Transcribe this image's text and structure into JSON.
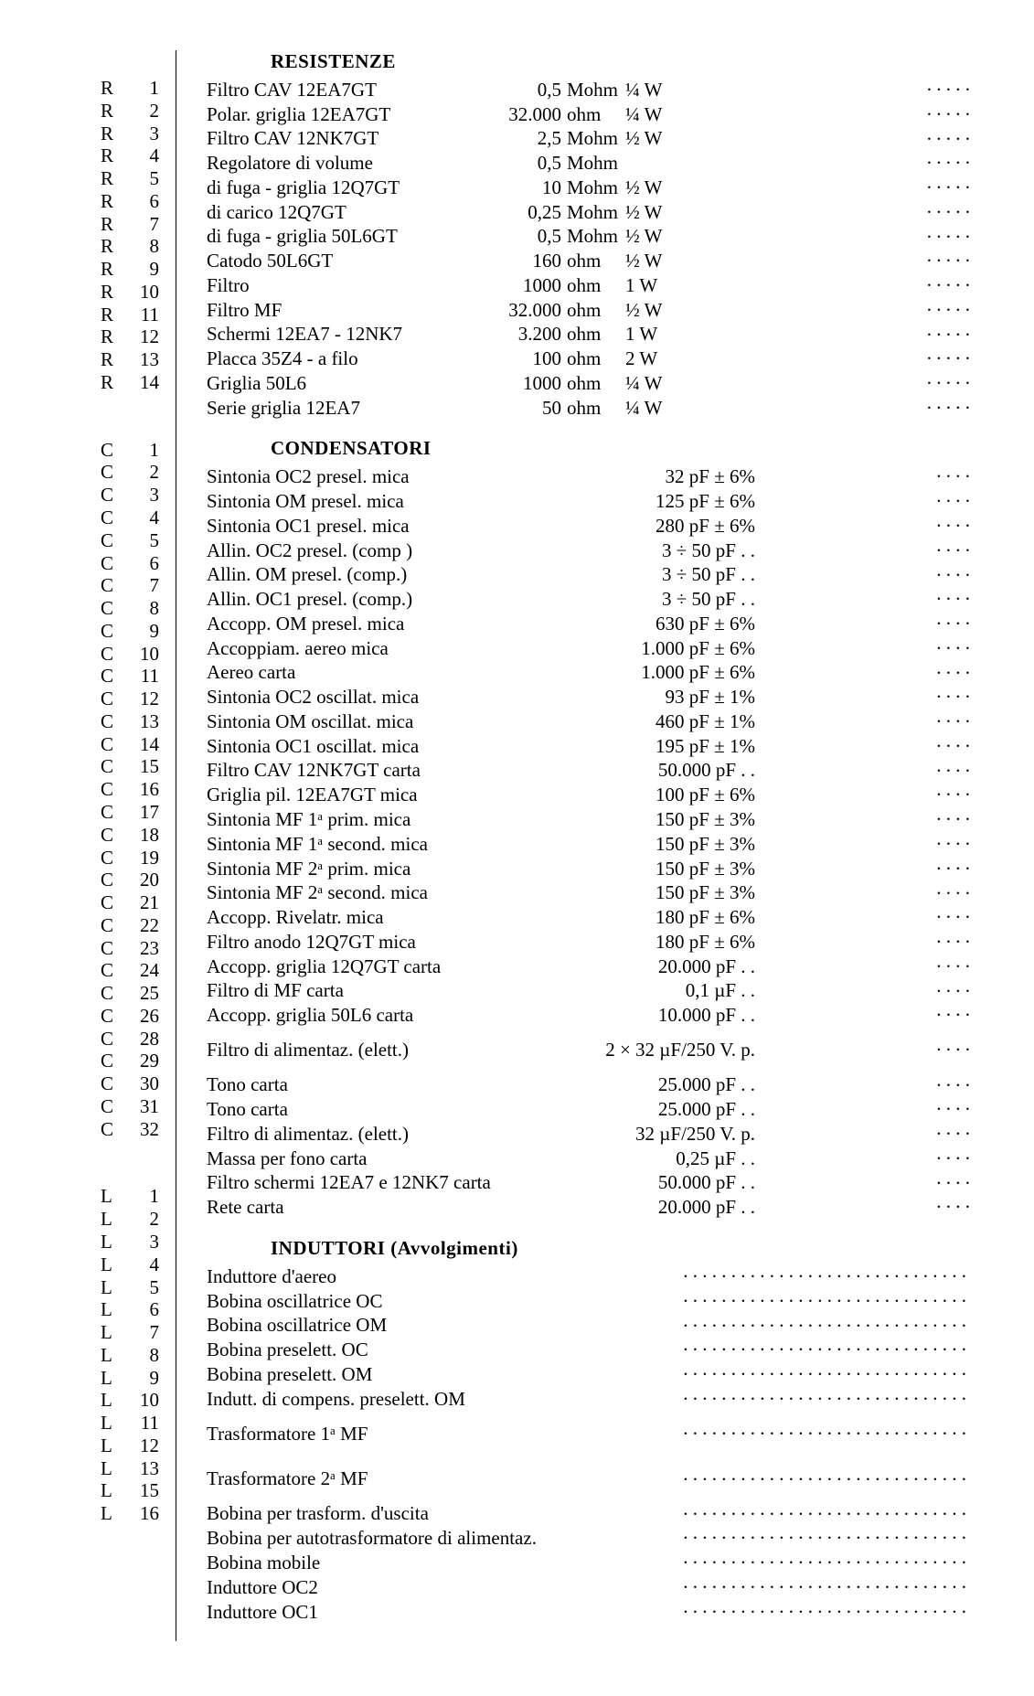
{
  "titles": {
    "resistors": "RESISTENZE",
    "capacitors": "CONDENSATORI",
    "inductors": "INDUTTORI (Avvolgimenti)"
  },
  "resistors": [
    {
      "ref": "R",
      "n": "1",
      "desc": "Filtro CAV 12EA7GT",
      "val": "0,5",
      "unit": "Mohm",
      "w": "¼ W"
    },
    {
      "ref": "R",
      "n": "2",
      "desc": "Polar. griglia 12EA7GT",
      "val": "32.000",
      "unit": "ohm",
      "w": "¼ W"
    },
    {
      "ref": "R",
      "n": "3",
      "desc": "Filtro CAV 12NK7GT",
      "val": "2,5",
      "unit": "Mohm",
      "w": "½ W"
    },
    {
      "ref": "R",
      "n": "4",
      "desc": "Regolatore di volume",
      "val": "0,5",
      "unit": "Mohm",
      "w": ""
    },
    {
      "ref": "R",
      "n": "5",
      "desc": "di fuga - griglia 12Q7GT",
      "val": "10",
      "unit": "Mohm",
      "w": "½ W"
    },
    {
      "ref": "R",
      "n": "6",
      "desc": "di carico 12Q7GT",
      "val": "0,25",
      "unit": "Mohm",
      "w": "½ W"
    },
    {
      "ref": "R",
      "n": "7",
      "desc": "di fuga - griglia 50L6GT",
      "val": "0,5",
      "unit": "Mohm",
      "w": "½ W"
    },
    {
      "ref": "R",
      "n": "8",
      "desc": "Catodo 50L6GT",
      "val": "160",
      "unit": "ohm",
      "w": "½ W"
    },
    {
      "ref": "R",
      "n": "9",
      "desc": "Filtro",
      "val": "1000",
      "unit": "ohm",
      "w": "1  W"
    },
    {
      "ref": "R",
      "n": "10",
      "desc": "Filtro MF",
      "val": "32.000",
      "unit": "ohm",
      "w": "½ W"
    },
    {
      "ref": "R",
      "n": "11",
      "desc": "Schermi 12EA7 - 12NK7",
      "val": "3.200",
      "unit": "ohm",
      "w": "1  W"
    },
    {
      "ref": "R",
      "n": "12",
      "desc": "Placca 35Z4 - a filo",
      "val": "100",
      "unit": "ohm",
      "w": "2  W"
    },
    {
      "ref": "R",
      "n": "13",
      "desc": "Griglia 50L6",
      "val": "1000",
      "unit": "ohm",
      "w": "¼ W"
    },
    {
      "ref": "R",
      "n": "14",
      "desc": "Serie griglia 12EA7",
      "val": "50",
      "unit": "ohm",
      "w": "¼ W"
    }
  ],
  "capacitors": [
    {
      "ref": "C",
      "n": "1",
      "desc": "Sintonia OC2 presel. mica",
      "val": "32 pF ± 6%"
    },
    {
      "ref": "C",
      "n": "2",
      "desc": "Sintonia OM presel. mica",
      "val": "125 pF ± 6%"
    },
    {
      "ref": "C",
      "n": "3",
      "desc": "Sintonia OC1 presel. mica",
      "val": "280 pF ± 6%"
    },
    {
      "ref": "C",
      "n": "4",
      "desc": "Allin. OC2 presel. (comp )",
      "val": "3 ÷ 50 pF   .    ."
    },
    {
      "ref": "C",
      "n": "5",
      "desc": "Allin. OM presel. (comp.)",
      "val": "3 ÷ 50 pF   .    ."
    },
    {
      "ref": "C",
      "n": "6",
      "desc": "Allin. OC1 presel. (comp.)",
      "val": "3 ÷ 50 pF   .    ."
    },
    {
      "ref": "C",
      "n": "7",
      "desc": "Accopp. OM presel. mica",
      "val": "630 pF ± 6%"
    },
    {
      "ref": "C",
      "n": "8",
      "desc": "Accoppiam. aereo mica",
      "val": "1.000 pF ± 6%"
    },
    {
      "ref": "C",
      "n": "9",
      "desc": "Aereo carta",
      "val": "1.000 pF ± 6%"
    },
    {
      "ref": "C",
      "n": "10",
      "desc": "Sintonia OC2 oscillat. mica",
      "val": "93 pF ± 1%"
    },
    {
      "ref": "C",
      "n": "11",
      "desc": "Sintonia OM oscillat. mica",
      "val": "460 pF ± 1%"
    },
    {
      "ref": "C",
      "n": "12",
      "desc": "Sintonia OC1 oscillat. mica",
      "val": "195 pF ± 1%"
    },
    {
      "ref": "C",
      "n": "13",
      "desc": "Filtro CAV 12NK7GT carta",
      "val": "50.000 pF   .    ."
    },
    {
      "ref": "C",
      "n": "14",
      "desc": "Griglia pil. 12EA7GT mica",
      "val": "100 pF ± 6%"
    },
    {
      "ref": "C",
      "n": "15",
      "desc": "Sintonia MF 1ᵃ prim. mica",
      "val": "150 pF ± 3%"
    },
    {
      "ref": "C",
      "n": "16",
      "desc": "Sintonia MF 1ᵃ second. mica",
      "val": "150 pF ± 3%"
    },
    {
      "ref": "C",
      "n": "17",
      "desc": "Sintonia MF 2ᵃ prim. mica",
      "val": "150 pF ± 3%"
    },
    {
      "ref": "C",
      "n": "18",
      "desc": "Sintonia MF 2ᵃ second. mica",
      "val": "150 pF ± 3%"
    },
    {
      "ref": "C",
      "n": "19",
      "desc": "Accopp. Rivelatr. mica",
      "val": "180 pF ± 6%"
    },
    {
      "ref": "C",
      "n": "20",
      "desc": "Filtro anodo 12Q7GT mica",
      "val": "180 pF ± 6%"
    },
    {
      "ref": "C",
      "n": "21",
      "desc": "Accopp. griglia 12Q7GT carta",
      "val": "20.000 pF   .    ."
    },
    {
      "ref": "C",
      "n": "22",
      "desc": "Filtro di MF carta",
      "val": "0,1 µF   .    ."
    },
    {
      "ref": "C",
      "n": "23",
      "desc": "Accopp. griglia 50L6 carta",
      "val": "10.000 pF   .    ."
    },
    {
      "ref": "C",
      "n": "24",
      "desc": "Filtro di alimentaz. (elett.)",
      "val": "2 × 32 µF/250 V. p.",
      "pair": true
    },
    {
      "ref": "C",
      "n": "25",
      "desc": "",
      "val": "",
      "pair": true
    },
    {
      "ref": "C",
      "n": "26",
      "desc": "Tono carta",
      "val": "25.000 pF   .    ."
    },
    {
      "ref": "C",
      "n": "28",
      "desc": "Tono carta",
      "val": "25.000 pF   .    ."
    },
    {
      "ref": "C",
      "n": "29",
      "desc": "Filtro di alimentaz. (elett.)",
      "val": "32 µF/250 V. p."
    },
    {
      "ref": "C",
      "n": "30",
      "desc": "Massa per fono carta",
      "val": "0,25 µF   .    ."
    },
    {
      "ref": "C",
      "n": "31",
      "desc": "Filtro schermi 12EA7 e 12NK7 carta",
      "val": "50.000 pF   .    ."
    },
    {
      "ref": "C",
      "n": "32",
      "desc": "Rete carta",
      "val": "20.000 pF   .    ."
    }
  ],
  "inductors": [
    {
      "ref": "L",
      "n": "1",
      "desc": "Induttore d'aereo"
    },
    {
      "ref": "L",
      "n": "2",
      "desc": "Bobina oscillatrice OC"
    },
    {
      "ref": "L",
      "n": "3",
      "desc": "Bobina oscillatrice OM"
    },
    {
      "ref": "L",
      "n": "4",
      "desc": "Bobina preselett. OC"
    },
    {
      "ref": "L",
      "n": "5",
      "desc": "Bobina preselett. OM"
    },
    {
      "ref": "L",
      "n": "6",
      "desc": "Indutt. di compens. preselett. OM"
    },
    {
      "ref": "L",
      "n": "7",
      "desc": "Trasformatore 1ᵃ MF",
      "pair": true
    },
    {
      "ref": "L",
      "n": "8",
      "desc": "",
      "pair": true
    },
    {
      "ref": "L",
      "n": "9",
      "desc": "Trasformatore 2ᵃ MF",
      "pair": true
    },
    {
      "ref": "L",
      "n": "10",
      "desc": "",
      "pair": true
    },
    {
      "ref": "L",
      "n": "11",
      "desc": "Bobina per trasform. d'uscita"
    },
    {
      "ref": "L",
      "n": "12",
      "desc": "Bobina per autotrasformatore di alimentaz."
    },
    {
      "ref": "L",
      "n": "13",
      "desc": "Bobina mobile"
    },
    {
      "ref": "L",
      "n": "15",
      "desc": "Induttore OC2"
    },
    {
      "ref": "L",
      "n": "16",
      "desc": "Induttore OC1"
    }
  ]
}
